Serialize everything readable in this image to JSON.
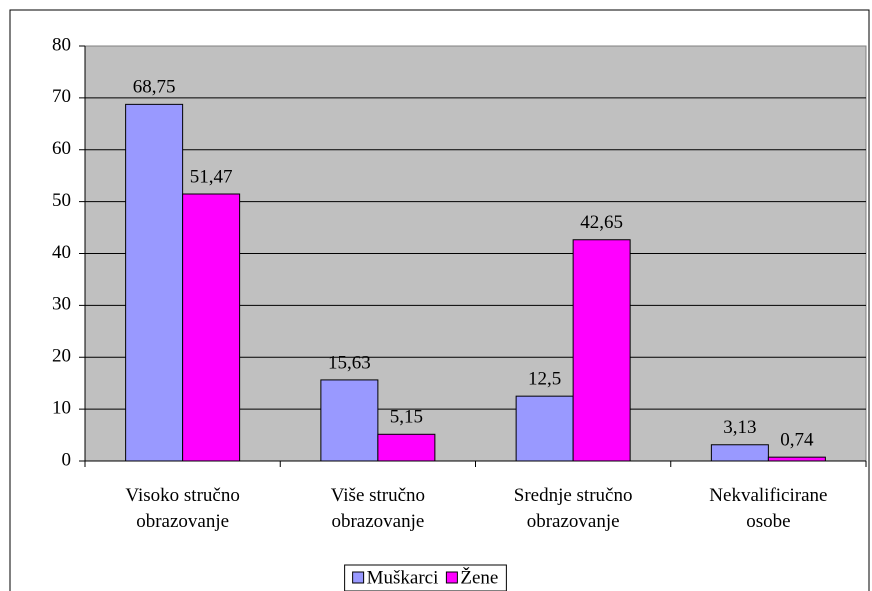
{
  "chart_data": {
    "type": "bar",
    "categories": [
      "Visoko stručno\nobrazovanje",
      "Više stručno\nobrazovanje",
      "Srednje stručno\nobrazovanje",
      "Nekvalificirane\nosobe"
    ],
    "series": [
      {
        "name": "Muškarci",
        "color": "#9999ff",
        "values": [
          68.75,
          15.63,
          12.5,
          3.13
        ],
        "value_labels": [
          "68,75",
          "15,63",
          "12,5",
          "3,13"
        ]
      },
      {
        "name": "Žene",
        "color": "#ff00ff",
        "values": [
          51.47,
          5.15,
          42.65,
          0.74
        ],
        "value_labels": [
          "51,47",
          "5,15",
          "42,65",
          "0,74"
        ]
      }
    ],
    "ylim": [
      0,
      80
    ],
    "yticks": [
      0,
      10,
      20,
      30,
      40,
      50,
      60,
      70,
      80
    ],
    "grid": true,
    "legend": "bottom"
  }
}
